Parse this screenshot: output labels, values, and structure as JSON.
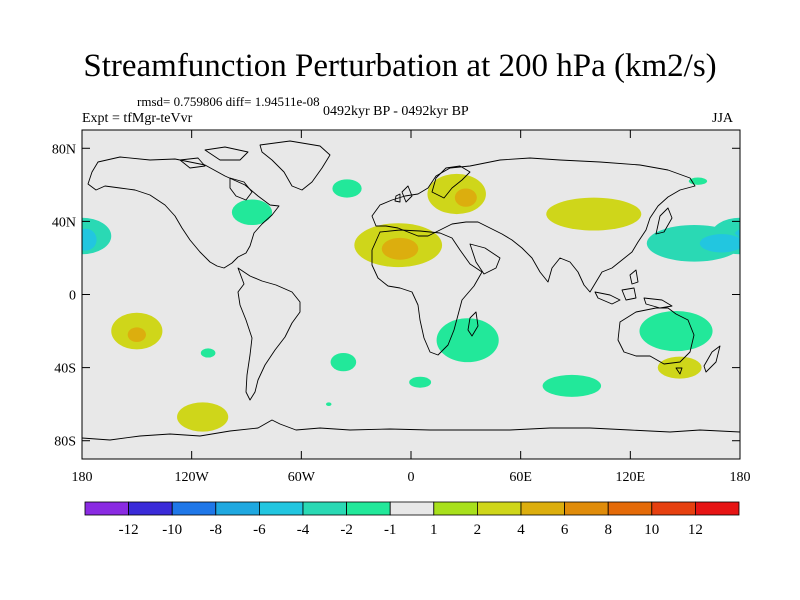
{
  "chart_data": {
    "type": "heatmap",
    "title": "Streamfunction Perturbation at 200 hPa (km2/s)",
    "stats_line": "rmsd= 0.759806 diff= 1.94511e-08",
    "experiment_label": "Expt = tfMgr-teVvr",
    "period_label": "0492kyr BP - 0492kyr BP",
    "season_label": "JJA",
    "units": "km2/s",
    "x_axis": {
      "range": [
        -180,
        180
      ],
      "ticks": [
        -180,
        -120,
        -60,
        0,
        60,
        120,
        180
      ],
      "tick_labels": [
        "180",
        "120W",
        "60W",
        "0",
        "60E",
        "120E",
        "180"
      ]
    },
    "y_axis": {
      "range": [
        -90,
        90
      ],
      "ticks": [
        80,
        40,
        0,
        -40,
        -80
      ],
      "tick_labels": [
        "80N",
        "40N",
        "0",
        "40S",
        "80S"
      ]
    },
    "colorbar": {
      "colors": [
        "#8a2be2",
        "#3a2bd8",
        "#1f77e8",
        "#1fa8e0",
        "#22c6e0",
        "#2ad9b4",
        "#22e89a",
        "#e8e8e8",
        "#a8e01c",
        "#cfd61a",
        "#dcae0e",
        "#e08c0a",
        "#e46a08",
        "#e64010",
        "#e61414"
      ],
      "labels": [
        "-12",
        "-10",
        "-8",
        "-6",
        "-4",
        "-2",
        "-1",
        "1",
        "2",
        "4",
        "6",
        "8",
        "10",
        "12"
      ]
    },
    "anomalies": [
      {
        "name": "north-pacific-east",
        "level": "-2",
        "lon": -180,
        "lat": 32,
        "lon_radius": 16,
        "lat_radius": 10
      },
      {
        "name": "north-pacific-east-core",
        "level": "-4",
        "lon": -178,
        "lat": 30,
        "lon_radius": 6,
        "lat_radius": 6
      },
      {
        "name": "south-pacific",
        "level": "2",
        "lon": -150,
        "lat": -20,
        "lon_radius": 14,
        "lat_radius": 10
      },
      {
        "name": "south-pacific-core",
        "level": "4",
        "lon": -150,
        "lat": -22,
        "lon_radius": 5,
        "lat_radius": 4
      },
      {
        "name": "south-pacific-small",
        "level": "-1",
        "lon": -111,
        "lat": -32,
        "lon_radius": 4,
        "lat_radius": 2.5
      },
      {
        "name": "southern-ocean-pacific",
        "level": "2",
        "lon": -114,
        "lat": -67,
        "lon_radius": 14,
        "lat_radius": 8
      },
      {
        "name": "north-america",
        "level": "-1",
        "lon": -87,
        "lat": 45,
        "lon_radius": 11,
        "lat_radius": 7
      },
      {
        "name": "north-atlantic",
        "level": "-1",
        "lon": -35,
        "lat": 58,
        "lon_radius": 8,
        "lat_radius": 5
      },
      {
        "name": "sahara",
        "level": "2",
        "lon": -7,
        "lat": 27,
        "lon_radius": 24,
        "lat_radius": 12
      },
      {
        "name": "sahara-core",
        "level": "4",
        "lon": -6,
        "lat": 25,
        "lon_radius": 10,
        "lat_radius": 6
      },
      {
        "name": "scandinavia",
        "level": "2",
        "lon": 25,
        "lat": 55,
        "lon_radius": 16,
        "lat_radius": 11
      },
      {
        "name": "scandinavia-core",
        "level": "4",
        "lon": 30,
        "lat": 53,
        "lon_radius": 6,
        "lat_radius": 5
      },
      {
        "name": "south-atlantic",
        "level": "-1",
        "lon": -37,
        "lat": -37,
        "lon_radius": 7,
        "lat_radius": 5
      },
      {
        "name": "southern-africa",
        "level": "-1",
        "lon": 31,
        "lat": -25,
        "lon_radius": 17,
        "lat_radius": 12
      },
      {
        "name": "southern-ocean-atlantic",
        "level": "-1",
        "lon": 5,
        "lat": -48,
        "lon_radius": 6,
        "lat_radius": 3
      },
      {
        "name": "southern-ocean-small",
        "level": "-1",
        "lon": -45,
        "lat": -60,
        "lon_radius": 1.5,
        "lat_radius": 1
      },
      {
        "name": "central-asia",
        "level": "2",
        "lon": 100,
        "lat": 44,
        "lon_radius": 26,
        "lat_radius": 9
      },
      {
        "name": "north-pacific-west",
        "level": "-2",
        "lon": 155,
        "lat": 28,
        "lon_radius": 26,
        "lat_radius": 10
      },
      {
        "name": "north-pacific-west-core",
        "level": "-4",
        "lon": 170,
        "lat": 28,
        "lon_radius": 12,
        "lat_radius": 5
      },
      {
        "name": "east-asia-small",
        "level": "-1",
        "lon": 157,
        "lat": 62,
        "lon_radius": 5,
        "lat_radius": 2
      },
      {
        "name": "australia",
        "level": "-1",
        "lon": 145,
        "lat": -20,
        "lon_radius": 20,
        "lat_radius": 11
      },
      {
        "name": "southern-ocean-indian",
        "level": "-1",
        "lon": 88,
        "lat": -50,
        "lon_radius": 16,
        "lat_radius": 6
      },
      {
        "name": "tasman",
        "level": "2",
        "lon": 147,
        "lat": -40,
        "lon_radius": 12,
        "lat_radius": 6
      }
    ]
  }
}
